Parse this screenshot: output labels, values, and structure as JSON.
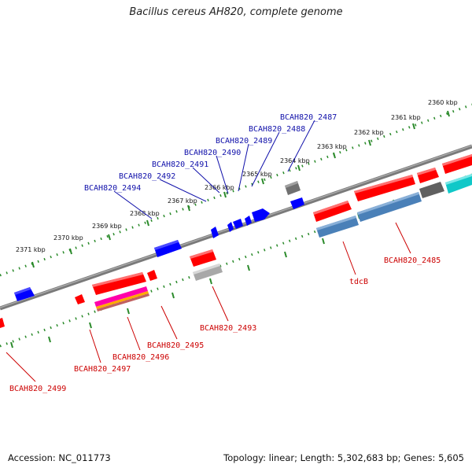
{
  "title": "Bacillus cereus AH820, complete genome",
  "footer": {
    "accession": "Accession: NC_011773",
    "summary": "Topology: linear; Length: 5,302,683 bp; Genes: 5,605"
  },
  "colors": {
    "forward_gene": "#ff0000",
    "reverse_gene": "#0000ff",
    "pseudo_gene": "#707070",
    "rrna_blue": "#4a80b8",
    "cyan_gene": "#10c8c8",
    "backbone": "#808080",
    "tick": "#2a8a2a",
    "label_red": "#cc0000",
    "label_blue": "#1010aa"
  },
  "scale_labels": [
    "2360 kbp",
    "2361 kbp",
    "2362 kbp",
    "2363 kbp",
    "2364 kbp",
    "2365 kbp",
    "2366 kbp",
    "2367 kbp",
    "2368 kbp",
    "2369 kbp",
    "2370 kbp",
    "2371 kbp"
  ],
  "gene_labels_top": [
    "BCAH820_2487",
    "BCAH820_2488",
    "BCAH820_2489",
    "BCAH820_2490",
    "BCAH820_2491",
    "BCAH820_2492",
    "BCAH820_2494"
  ],
  "gene_labels_bottom": [
    "BCAH820_2485",
    "tdcB",
    "BCAH820_2493",
    "BCAH820_2495",
    "BCAH820_2496",
    "BCAH820_2497",
    "BCAH820_2499"
  ]
}
